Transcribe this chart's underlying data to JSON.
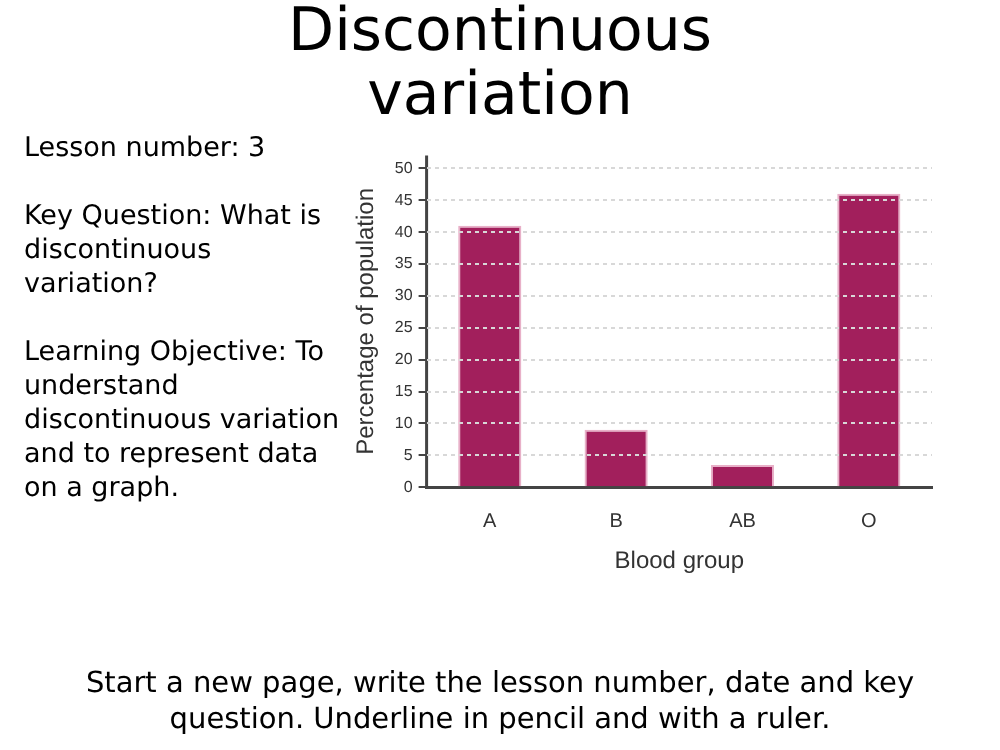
{
  "chart_data": {
    "type": "bar",
    "title": "Discontinuous variation",
    "xlabel": "Blood group",
    "ylabel": "Percentage of population",
    "categories": [
      "A",
      "B",
      "AB",
      "O"
    ],
    "values": [
      41,
      9,
      3.5,
      46
    ],
    "color": "#a21f5c",
    "ylim": [
      0,
      52
    ],
    "yticks": [
      0,
      5,
      10,
      15,
      20,
      25,
      30,
      35,
      40,
      45,
      50
    ],
    "grid": "y",
    "line_style": "dotted",
    "annotations": [
      "Lesson number: 3",
      "Key Question: What is discontinuous variation?",
      "Learning Objective: To understand discontinuous variation and to represent data on a graph.",
      "Start a new page, write the lesson number, date and key question. Underline in pencil and with a ruler."
    ]
  }
}
